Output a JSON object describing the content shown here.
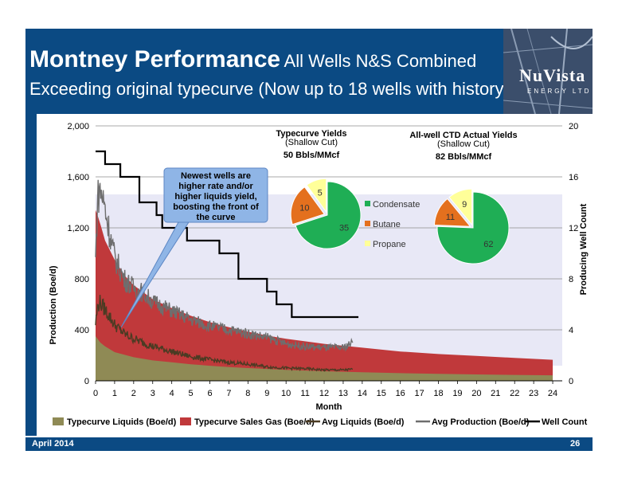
{
  "slide": {
    "title_main": "Montney Performance",
    "title_sub": "All Wells N&S Combined",
    "subtitle": "Exceeding original typecurve (Now up to 18 wells with history)",
    "footer_date": "April 2014",
    "page_number": "26",
    "logo_text": "NuVista",
    "logo_sub": "ENERGY LTD"
  },
  "callout": "Newest wells are higher rate and/or higher liquids yield, boosting the front of the curve",
  "pies": [
    {
      "title": "Typecurve Yields",
      "subtitle": "(Shallow Cut)",
      "total": "50 Bbls/MMcf",
      "slices": [
        {
          "label": "Condensate",
          "value": 35,
          "color": "#1fae55"
        },
        {
          "label": "Butane",
          "value": 10,
          "color": "#e4701e"
        },
        {
          "label": "Propane",
          "value": 5,
          "color": "#ffff99"
        }
      ]
    },
    {
      "title": "All-well CTD Actual Yields",
      "subtitle": "(Shallow Cut)",
      "total": "82 Bbls/MMcf",
      "slices": [
        {
          "label": "Condensate",
          "value": 62,
          "color": "#1fae55"
        },
        {
          "label": "Butane",
          "value": 11,
          "color": "#e4701e"
        },
        {
          "label": "Propane",
          "value": 9,
          "color": "#ffff99"
        }
      ]
    }
  ],
  "pie_legend": [
    "Condensate",
    "Butane",
    "Propane"
  ],
  "chart_data": {
    "type": "area",
    "xlabel": "Month",
    "ylabel": "Production (Boe/d)",
    "y2label": "Producing Well Count",
    "xlim": [
      0,
      24.5
    ],
    "ylim": [
      0,
      2000
    ],
    "y2lim": [
      0,
      20
    ],
    "xticks": [
      0,
      1,
      2,
      3,
      4,
      5,
      6,
      7,
      8,
      9,
      10,
      11,
      12,
      13,
      14,
      15,
      16,
      17,
      18,
      19,
      20,
      21,
      22,
      23,
      24
    ],
    "yticks": [
      0,
      400,
      800,
      1200,
      1600,
      2000
    ],
    "y2ticks": [
      0,
      4,
      8,
      12,
      16,
      20
    ],
    "grid": true,
    "legend_position": "bottom",
    "series": [
      {
        "name": "Typecurve Liquids (Boe/d)",
        "kind": "area",
        "color": "#8f8a55",
        "x": [
          0,
          0.25,
          0.5,
          1,
          2,
          3,
          4,
          5,
          6,
          7,
          8,
          9,
          10,
          12,
          14,
          16,
          18,
          20,
          22,
          24
        ],
        "values": [
          350,
          300,
          270,
          225,
          185,
          160,
          145,
          130,
          118,
          108,
          100,
          93,
          86,
          75,
          67,
          60,
          55,
          50,
          46,
          43
        ]
      },
      {
        "name": "Typecurve Sales Gas (Boe/d)",
        "kind": "area",
        "color": "#c0393b",
        "x": [
          0,
          0.1,
          0.25,
          0.5,
          1,
          1.5,
          2,
          3,
          4,
          5,
          6,
          7,
          8,
          9,
          10,
          12,
          14,
          16,
          18,
          20,
          22,
          24
        ],
        "values": [
          1340,
          1300,
          1230,
          1100,
          950,
          830,
          750,
          640,
          570,
          510,
          460,
          420,
          385,
          355,
          330,
          290,
          260,
          230,
          210,
          195,
          180,
          165
        ]
      },
      {
        "name": "Avg Liquids (Boe/d)",
        "kind": "line",
        "color": "#4b3b23",
        "x": [
          0,
          0.1,
          0.2,
          0.3,
          0.5,
          0.75,
          1,
          1.5,
          2,
          2.5,
          3,
          4,
          5,
          6,
          7,
          8,
          9,
          10,
          11,
          12,
          13,
          13.5
        ],
        "values": [
          450,
          570,
          620,
          600,
          560,
          500,
          440,
          370,
          330,
          300,
          270,
          230,
          190,
          165,
          145,
          130,
          110,
          100,
          95,
          85,
          85,
          90
        ]
      },
      {
        "name": "Avg Production (Boe/d)",
        "kind": "line",
        "color": "#6e6e6e",
        "x": [
          0,
          0.1,
          0.2,
          0.3,
          0.5,
          0.75,
          1,
          1.5,
          2,
          2.5,
          3,
          4,
          5,
          6,
          7,
          8,
          9,
          10,
          11,
          12,
          13,
          13.5
        ],
        "values": [
          950,
          1420,
          1500,
          1480,
          1350,
          1150,
          970,
          800,
          730,
          690,
          620,
          550,
          480,
          430,
          400,
          370,
          340,
          290,
          270,
          260,
          260,
          300
        ]
      },
      {
        "name": "Well Count",
        "kind": "step",
        "axis": "y2",
        "color": "#000000",
        "x": [
          0,
          0.5,
          1.3,
          2.3,
          3.2,
          3.5,
          4.8,
          6.5,
          7.5,
          9,
          9.5,
          10.3,
          13.8
        ],
        "values": [
          18,
          17,
          16,
          14,
          13,
          12,
          11,
          10,
          8,
          7,
          6,
          5,
          5
        ]
      }
    ]
  }
}
